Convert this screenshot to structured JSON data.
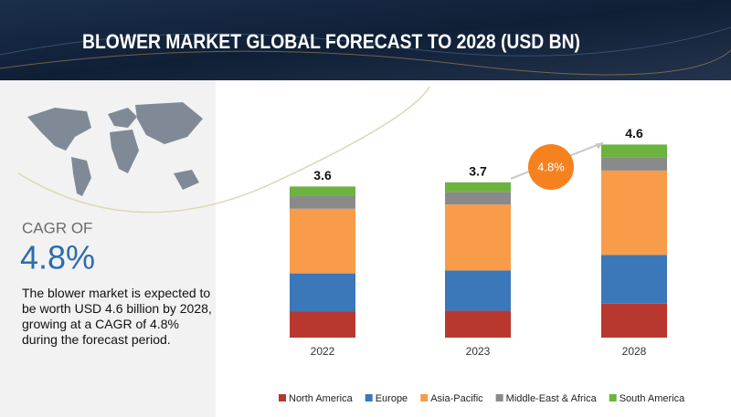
{
  "header": {
    "title": "BLOWER MARKET GLOBAL FORECAST TO 2028 (USD BN)"
  },
  "sidebar": {
    "cagr_label": "CAGR OF",
    "cagr_value": "4.8%",
    "description": "The blower market is expected to be worth USD  4.6 billion by 2028, growing at a CAGR of 4.8% during the forecast period."
  },
  "chart_data": {
    "type": "bar",
    "stacked": true,
    "categories": [
      "2022",
      "2023",
      "2028"
    ],
    "series": [
      {
        "name": "North America",
        "color": "#b8382f",
        "values": [
          0.62,
          0.64,
          0.81
        ]
      },
      {
        "name": "Europe",
        "color": "#3b78b9",
        "values": [
          0.91,
          0.96,
          1.16
        ]
      },
      {
        "name": "Asia-Pacific",
        "color": "#f89c4a",
        "values": [
          1.54,
          1.57,
          2.01
        ]
      },
      {
        "name": "Middle-East & Africa",
        "color": "#8a8a8a",
        "values": [
          0.3,
          0.3,
          0.32
        ]
      },
      {
        "name": "South America",
        "color": "#6db33f",
        "values": [
          0.23,
          0.23,
          0.3
        ]
      }
    ],
    "totals": [
      3.6,
      3.7,
      4.6
    ],
    "cagr_badge": "4.8%"
  }
}
